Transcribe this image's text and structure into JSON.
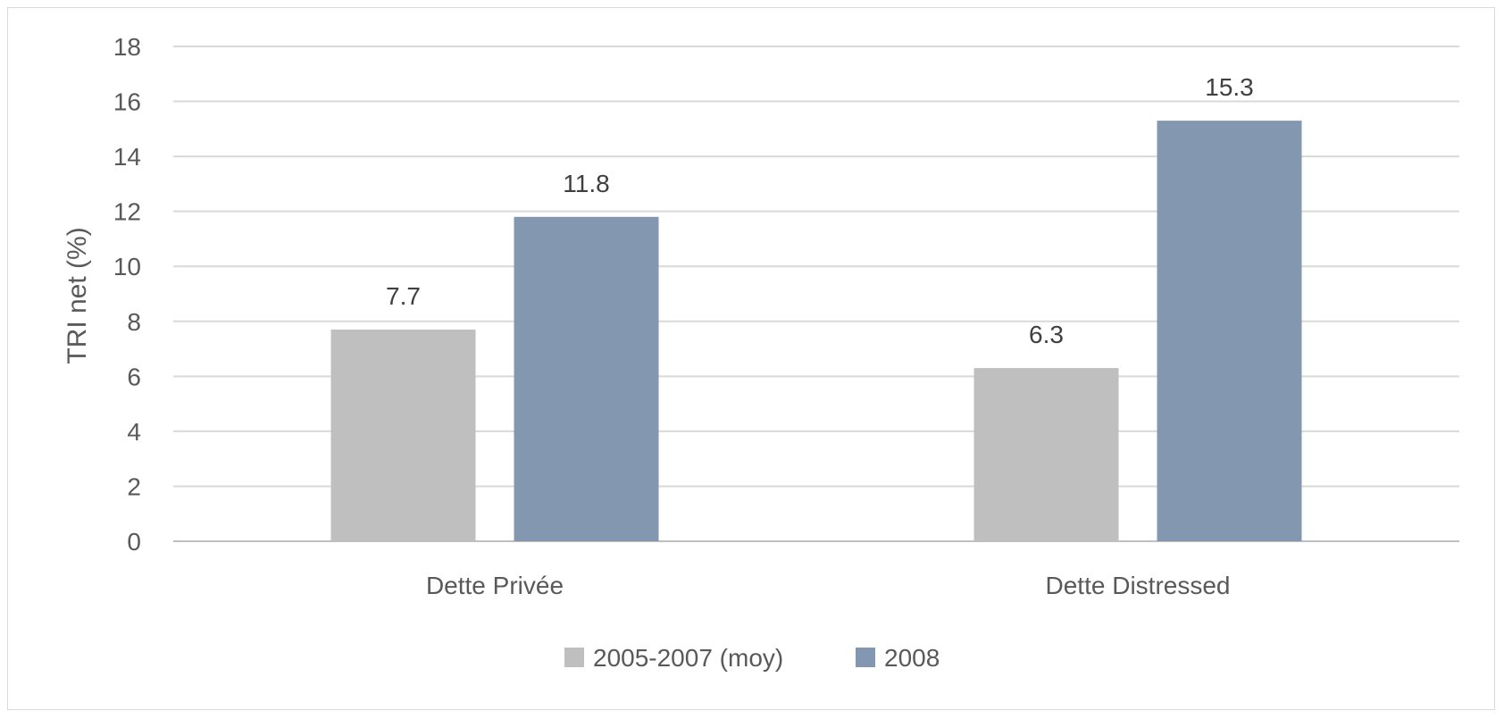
{
  "chart_data": {
    "type": "bar",
    "title": "",
    "xlabel": "",
    "ylabel": "TRI net (%)",
    "ylim": [
      0,
      18
    ],
    "yticks": [
      0,
      2,
      4,
      6,
      8,
      10,
      12,
      14,
      16,
      18
    ],
    "categories": [
      "Dette Privée",
      "Dette Distressed"
    ],
    "series": [
      {
        "name": "2005-2007 (moy)",
        "values": [
          7.7,
          6.3
        ],
        "color": "#bfbfbf"
      },
      {
        "name": "2008",
        "values": [
          11.8,
          15.3
        ],
        "color": "#8497b0"
      }
    ],
    "data_labels": true,
    "grid": true,
    "legend_position": "bottom"
  }
}
